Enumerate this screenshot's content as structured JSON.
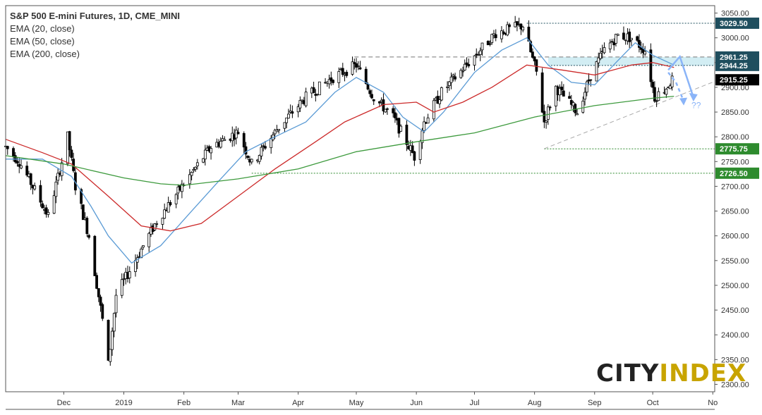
{
  "legend": {
    "title": "S&P 500 E-mini Futures, 1D, CME_MINI",
    "lines": [
      "EMA (20, close)",
      "EMA (50, close)",
      "EMA (200, close)"
    ]
  },
  "logo": {
    "part1": "CITY",
    "part2": "INDEX"
  },
  "chart_data": {
    "type": "line",
    "title": "S&P 500 E-mini Futures, 1D, CME_MINI",
    "ylim": [
      2285,
      3065
    ],
    "y_ticks": [
      2300,
      2350,
      2400,
      2450,
      2500,
      2550,
      2600,
      2650,
      2700,
      2750,
      2800,
      2850,
      2900,
      2950,
      3000,
      3050
    ],
    "x_ticks": [
      "Dec",
      "2019",
      "Feb",
      "Mar",
      "Apr",
      "May",
      "Jun",
      "Jul",
      "Aug",
      "Sep",
      "Oct",
      "No"
    ],
    "x_tick_dates": [
      "2018-12-01",
      "2019-01-01",
      "2019-02-01",
      "2019-03-01",
      "2019-04-01",
      "2019-05-01",
      "2019-06-01",
      "2019-07-01",
      "2019-08-01",
      "2019-09-01",
      "2019-10-01",
      "2019-11-01"
    ],
    "xlim": [
      "2018-11-01",
      "2019-11-02"
    ],
    "grid": false,
    "series": [
      {
        "name": "EMA (20, close)",
        "color": "#5b9bd5",
        "x": [
          "2018-11-01",
          "2018-11-20",
          "2018-12-05",
          "2018-12-15",
          "2018-12-24",
          "2019-01-05",
          "2019-01-20",
          "2019-02-05",
          "2019-02-20",
          "2019-03-05",
          "2019-03-20",
          "2019-04-05",
          "2019-04-20",
          "2019-05-01",
          "2019-05-15",
          "2019-05-25",
          "2019-06-05",
          "2019-06-15",
          "2019-07-01",
          "2019-07-15",
          "2019-07-28",
          "2019-08-08",
          "2019-08-20",
          "2019-09-01",
          "2019-09-12",
          "2019-09-22",
          "2019-10-01",
          "2019-10-12"
        ],
        "values": [
          2755,
          2755,
          2720,
          2660,
          2600,
          2545,
          2580,
          2650,
          2715,
          2770,
          2800,
          2830,
          2890,
          2920,
          2890,
          2840,
          2810,
          2850,
          2930,
          2975,
          3000,
          2945,
          2910,
          2905,
          2950,
          2990,
          2965,
          2945
        ]
      },
      {
        "name": "EMA (50, close)",
        "color": "#cc2a2a",
        "x": [
          "2018-11-01",
          "2018-11-20",
          "2018-12-05",
          "2018-12-24",
          "2019-01-10",
          "2019-01-25",
          "2019-02-10",
          "2019-03-01",
          "2019-03-20",
          "2019-04-10",
          "2019-04-25",
          "2019-05-15",
          "2019-06-01",
          "2019-06-10",
          "2019-06-25",
          "2019-07-10",
          "2019-07-28",
          "2019-08-15",
          "2019-09-01",
          "2019-09-20",
          "2019-10-01",
          "2019-10-12"
        ],
        "values": [
          2795,
          2768,
          2745,
          2680,
          2620,
          2610,
          2625,
          2680,
          2735,
          2790,
          2830,
          2865,
          2870,
          2850,
          2870,
          2900,
          2945,
          2935,
          2925,
          2945,
          2950,
          2940
        ]
      },
      {
        "name": "EMA (200, close)",
        "color": "#3d9a3d",
        "x": [
          "2018-11-01",
          "2018-12-01",
          "2019-01-01",
          "2019-01-20",
          "2019-02-01",
          "2019-03-01",
          "2019-04-01",
          "2019-05-01",
          "2019-06-01",
          "2019-07-01",
          "2019-08-01",
          "2019-09-01",
          "2019-10-01",
          "2019-10-12"
        ],
        "values": [
          2762,
          2745,
          2717,
          2705,
          2702,
          2715,
          2735,
          2770,
          2790,
          2808,
          2840,
          2863,
          2878,
          2882
        ]
      }
    ],
    "price_labels": [
      {
        "value": 3029.5,
        "text": "3029.50",
        "style": "dark"
      },
      {
        "value": 2961.25,
        "text": "2961.25",
        "style": "dark"
      },
      {
        "value": 2944.25,
        "text": "2944.25",
        "style": "dark"
      },
      {
        "value": 2915.25,
        "text": "2915.25",
        "style": "black"
      },
      {
        "value": 2775.75,
        "text": "2775.75",
        "style": "green"
      },
      {
        "value": 2726.5,
        "text": "2726.50",
        "style": "green"
      }
    ],
    "annotations": [
      {
        "text": "??",
        "x": "2019-10-21",
        "y": 2858
      }
    ],
    "candles_approx": {
      "x_start": "2018-11-01",
      "x_end": "2019-10-11",
      "path": [
        [
          "2018-11-01",
          2780
        ],
        [
          "2018-11-08",
          2750
        ],
        [
          "2018-11-15",
          2700
        ],
        [
          "2018-11-23",
          2640
        ],
        [
          "2018-11-30",
          2750
        ],
        [
          "2018-12-03",
          2800
        ],
        [
          "2018-12-07",
          2700
        ],
        [
          "2018-12-14",
          2600
        ],
        [
          "2018-12-21",
          2430
        ],
        [
          "2018-12-24",
          2340
        ],
        [
          "2018-12-28",
          2480
        ],
        [
          "2019-01-04",
          2530
        ],
        [
          "2019-01-18",
          2630
        ],
        [
          "2019-02-01",
          2705
        ],
        [
          "2019-02-15",
          2780
        ],
        [
          "2019-03-01",
          2810
        ],
        [
          "2019-03-08",
          2745
        ],
        [
          "2019-03-22",
          2820
        ],
        [
          "2019-04-05",
          2880
        ],
        [
          "2019-04-19",
          2920
        ],
        [
          "2019-05-01",
          2945
        ],
        [
          "2019-05-10",
          2880
        ],
        [
          "2019-05-20",
          2840
        ],
        [
          "2019-05-31",
          2760
        ],
        [
          "2019-06-05",
          2830
        ],
        [
          "2019-06-14",
          2890
        ],
        [
          "2019-06-28",
          2950
        ],
        [
          "2019-07-12",
          3010
        ],
        [
          "2019-07-26",
          3025
        ],
        [
          "2019-08-02",
          2930
        ],
        [
          "2019-08-06",
          2830
        ],
        [
          "2019-08-12",
          2900
        ],
        [
          "2019-08-23",
          2850
        ],
        [
          "2019-08-30",
          2925
        ],
        [
          "2019-09-06",
          2975
        ],
        [
          "2019-09-13",
          3005
        ],
        [
          "2019-09-20",
          3000
        ],
        [
          "2019-09-27",
          2975
        ],
        [
          "2019-10-02",
          2880
        ],
        [
          "2019-10-08",
          2900
        ],
        [
          "2019-10-11",
          2915
        ]
      ]
    }
  }
}
